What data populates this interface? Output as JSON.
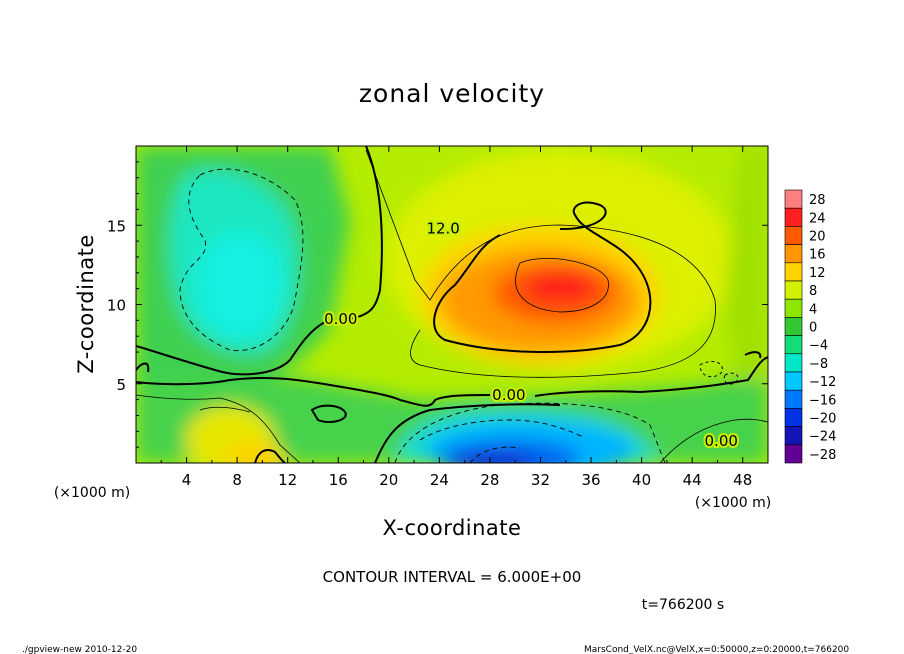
{
  "chart_data": {
    "type": "heatmap",
    "title": "zonal velocity",
    "xlabel": "X-coordinate",
    "ylabel": "Z-coordinate",
    "x_unit_left": "(×1000 m)",
    "x_unit_right": "(×1000 m)",
    "xlim": [
      0,
      50
    ],
    "ylim": [
      0,
      20
    ],
    "x_ticks": [
      4,
      8,
      12,
      16,
      20,
      24,
      28,
      32,
      36,
      40,
      44,
      48
    ],
    "y_ticks": [
      5,
      10,
      15
    ],
    "contour_interval_text": "CONTOUR INTERVAL = 6.000E+00",
    "time_text": "t=766200 s",
    "contour_labels": [
      {
        "text": "12.0",
        "x": 24.3,
        "y": 14.8
      },
      {
        "text": "0.00",
        "x": 16.2,
        "y": 9.1
      },
      {
        "text": "0.00",
        "x": 29.5,
        "y": 4.3
      },
      {
        "text": "0.00",
        "x": 46.3,
        "y": 1.4
      }
    ],
    "colorbar": {
      "levels": [
        28,
        24,
        20,
        16,
        12,
        8,
        4,
        0,
        -4,
        -8,
        -12,
        -16,
        -20,
        -24,
        -28
      ],
      "colors": [
        "#ff7f7f",
        "#ff2020",
        "#ff5a00",
        "#ff9600",
        "#ffd200",
        "#d2f000",
        "#8ce600",
        "#32c832",
        "#14dc78",
        "#00e6c8",
        "#00c8ff",
        "#0078ff",
        "#0032e6",
        "#1414b4",
        "#640096"
      ]
    },
    "features": [
      {
        "name": "jet max",
        "x": 33,
        "y": 11.3,
        "value": 24
      },
      {
        "name": "upper-left minimum",
        "x": 8,
        "y": 11,
        "value": -10
      },
      {
        "name": "lower reverse flow",
        "x": 28.5,
        "y": 0.3,
        "value": -22
      },
      {
        "name": "lower-left maximum",
        "x": 9.5,
        "y": 0.5,
        "value": 14
      }
    ]
  },
  "footer": {
    "left": "./gpview-new   2010-12-20",
    "right": "MarsCond_VelX.nc@VelX,x=0:50000,z=0:20000,t=766200"
  }
}
